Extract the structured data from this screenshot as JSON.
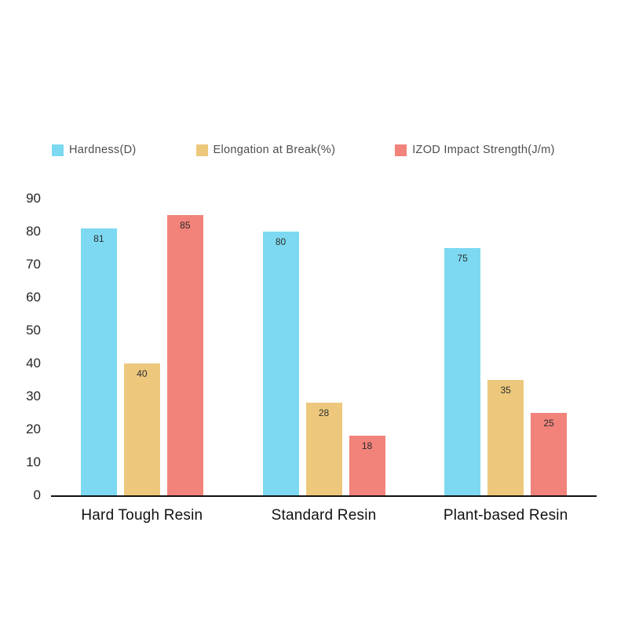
{
  "chart_data": {
    "type": "bar",
    "title": "",
    "categories": [
      "Hard Tough Resin",
      "Standard Resin",
      "Plant-based Resin"
    ],
    "series": [
      {
        "name": "Hardness(D)",
        "color": "#7DD9F1",
        "values": [
          81,
          80,
          75
        ]
      },
      {
        "name": "Elongation at Break(%)",
        "color": "#EDC87C",
        "values": [
          40,
          28,
          35
        ]
      },
      {
        "name": "IZOD Impact Strength(J/m)",
        "color": "#F2837A",
        "values": [
          85,
          18,
          25
        ]
      }
    ],
    "y_ticks": [
      90,
      80,
      70,
      60,
      50,
      40,
      30,
      20,
      10,
      0
    ],
    "ylim": [
      0,
      90
    ],
    "grid": false,
    "legend_position": "top",
    "xlabel": "",
    "ylabel": ""
  },
  "colors": {
    "background": "#ffffff",
    "axis_line": "#111111",
    "tick_text": "#262626",
    "category_text": "#111111",
    "legend_text": "#4d4d4d",
    "bar_value_text": "#2b2b2b"
  }
}
